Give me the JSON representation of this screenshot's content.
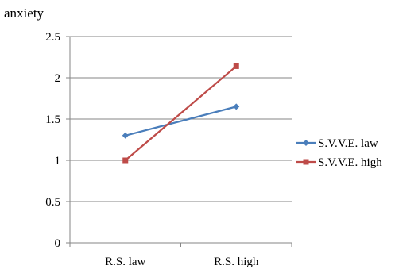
{
  "chart_data": {
    "type": "line",
    "title": "",
    "ylabel": "anxiety",
    "xlabel": "",
    "categories": [
      "R.S. law",
      "R.S. high"
    ],
    "ylim": [
      0,
      2.5
    ],
    "yticks": [
      0,
      0.5,
      1,
      1.5,
      2,
      2.5
    ],
    "ytick_labels": [
      "0",
      "0.5",
      "1",
      "1.5",
      "2",
      "2.5"
    ],
    "grid": true,
    "legend_position": "right",
    "series": [
      {
        "name": "S.V.V.E. law",
        "values": [
          1.3,
          1.65
        ],
        "color": "#4a7ebb",
        "marker": "diamond"
      },
      {
        "name": "S.V.V.E. high",
        "values": [
          1.0,
          2.14
        ],
        "color": "#be4b48",
        "marker": "square"
      }
    ]
  }
}
